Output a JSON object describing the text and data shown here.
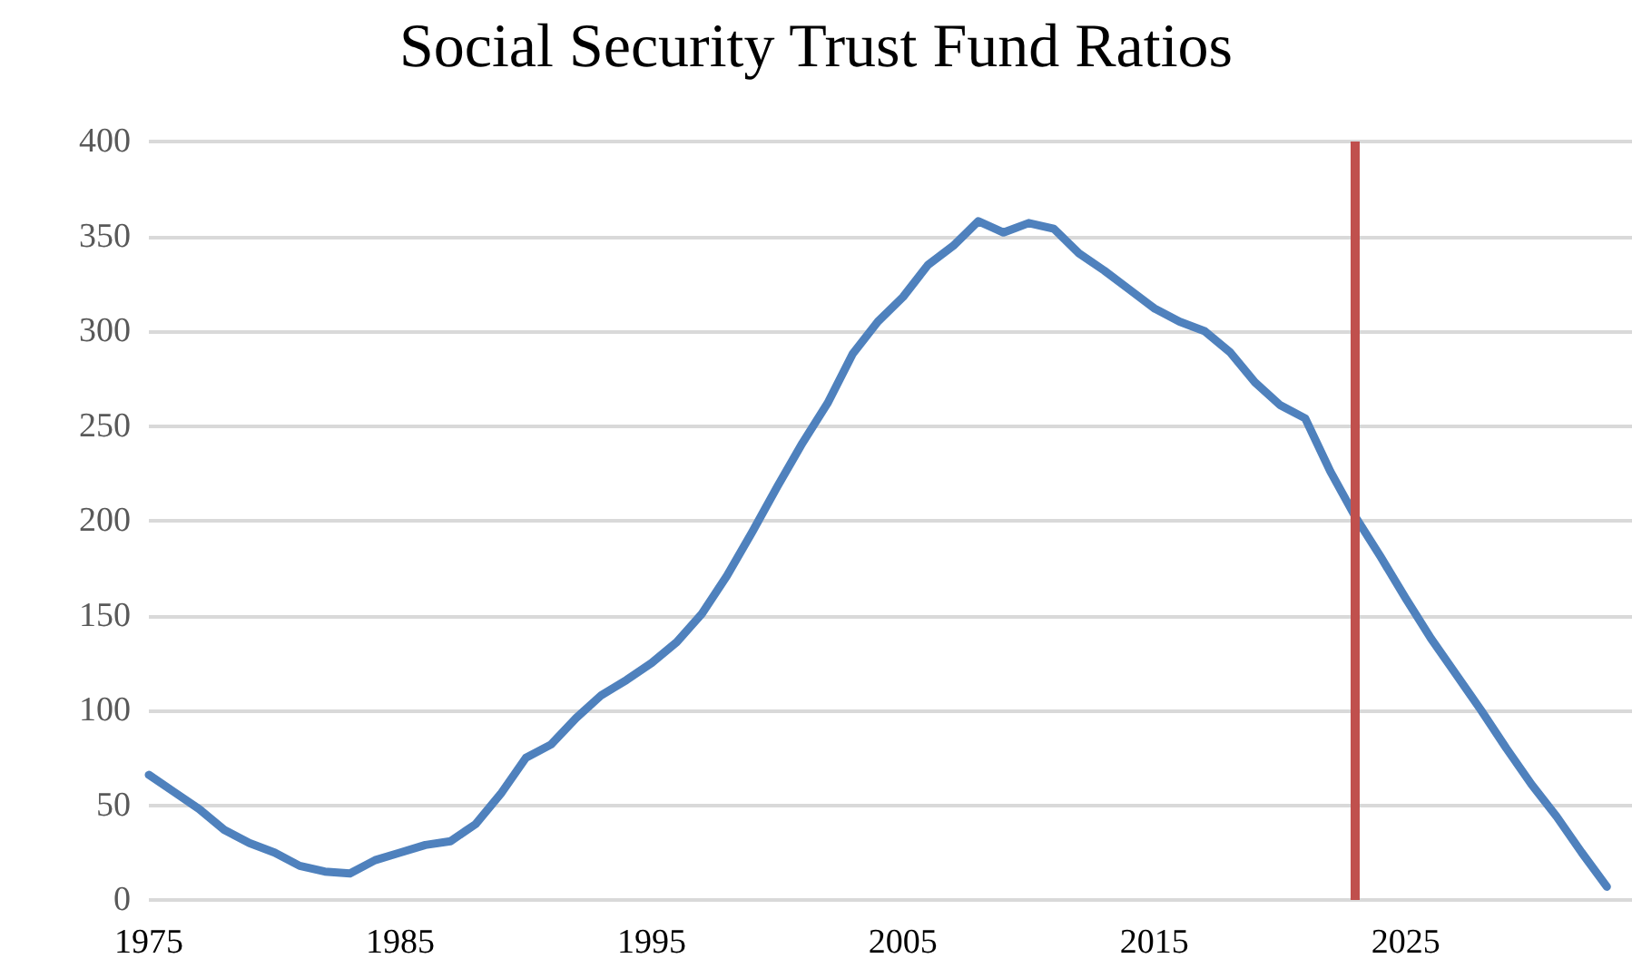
{
  "chart_data": {
    "type": "line",
    "title": "Social Security Trust Fund Ratios",
    "x": [
      1975,
      1976,
      1977,
      1978,
      1979,
      1980,
      1981,
      1982,
      1983,
      1984,
      1985,
      1986,
      1987,
      1988,
      1989,
      1990,
      1991,
      1992,
      1993,
      1994,
      1995,
      1996,
      1997,
      1998,
      1999,
      2000,
      2001,
      2002,
      2003,
      2004,
      2005,
      2006,
      2007,
      2008,
      2009,
      2010,
      2011,
      2012,
      2013,
      2014,
      2015,
      2016,
      2017,
      2018,
      2019,
      2020,
      2021,
      2022,
      2023,
      2024,
      2025,
      2026,
      2027,
      2028,
      2029,
      2030,
      2031,
      2032,
      2033
    ],
    "series": [
      {
        "color": "#4f81bd",
        "values": [
          66,
          57,
          48,
          37,
          30,
          25,
          18,
          15,
          14,
          21,
          25,
          29,
          31,
          40,
          56,
          75,
          82,
          96,
          108,
          116,
          125,
          136,
          151,
          171,
          194,
          218,
          241,
          262,
          288,
          305,
          318,
          335,
          345,
          358,
          352,
          357,
          354,
          341,
          332,
          322,
          312,
          305,
          300,
          289,
          273,
          261,
          254,
          226,
          202,
          181,
          159,
          138,
          119,
          100,
          80,
          61,
          44,
          25,
          7
        ]
      }
    ],
    "xlim": [
      1975,
      2034
    ],
    "xticks": [
      1975,
      1985,
      1995,
      2005,
      2015,
      2025
    ],
    "ylim": [
      0,
      400
    ],
    "yticks": [
      0,
      50,
      100,
      150,
      200,
      250,
      300,
      350,
      400
    ],
    "grid": "y",
    "marker": "none",
    "line_style": "solid",
    "ref_lines": [
      {
        "axis": "x",
        "value": 2023,
        "color": "#c0504d"
      }
    ]
  }
}
